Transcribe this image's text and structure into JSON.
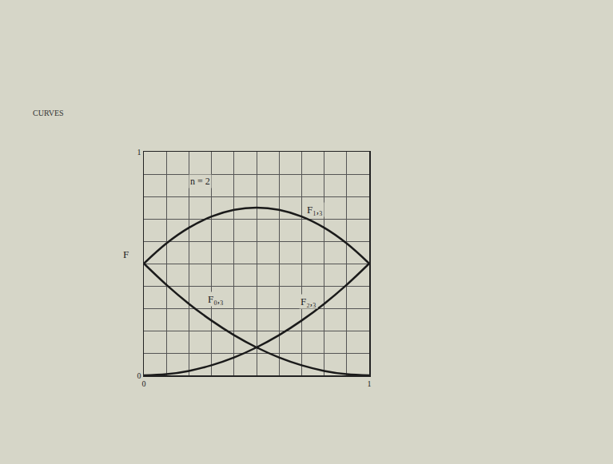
{
  "chart_data": {
    "type": "line",
    "header": "CURVES",
    "annotation": "n = 2",
    "y_label": "F",
    "x": [
      0,
      0.1,
      0.2,
      0.3,
      0.4,
      0.5,
      0.6,
      0.7,
      0.8,
      0.9,
      1
    ],
    "series": [
      {
        "name": "F₀,₃",
        "color": "#1a1a1a",
        "values": [
          0.5,
          0.405,
          0.32,
          0.245,
          0.18,
          0.125,
          0.08,
          0.045,
          0.02,
          0.005,
          0
        ]
      },
      {
        "name": "F₁,₃",
        "color": "#1a1a1a",
        "values": [
          0.5,
          0.59,
          0.66,
          0.71,
          0.74,
          0.75,
          0.74,
          0.71,
          0.66,
          0.59,
          0.5
        ]
      },
      {
        "name": "F₂,₃",
        "color": "#1a1a1a",
        "values": [
          0,
          0.005,
          0.02,
          0.045,
          0.08,
          0.125,
          0.18,
          0.245,
          0.32,
          0.405,
          0.5
        ]
      }
    ],
    "xlim": [
      0,
      1
    ],
    "ylim": [
      0,
      1
    ],
    "xticks": [
      0,
      1
    ],
    "yticks": [
      0,
      1
    ],
    "grid": true,
    "line_style": "solid"
  }
}
